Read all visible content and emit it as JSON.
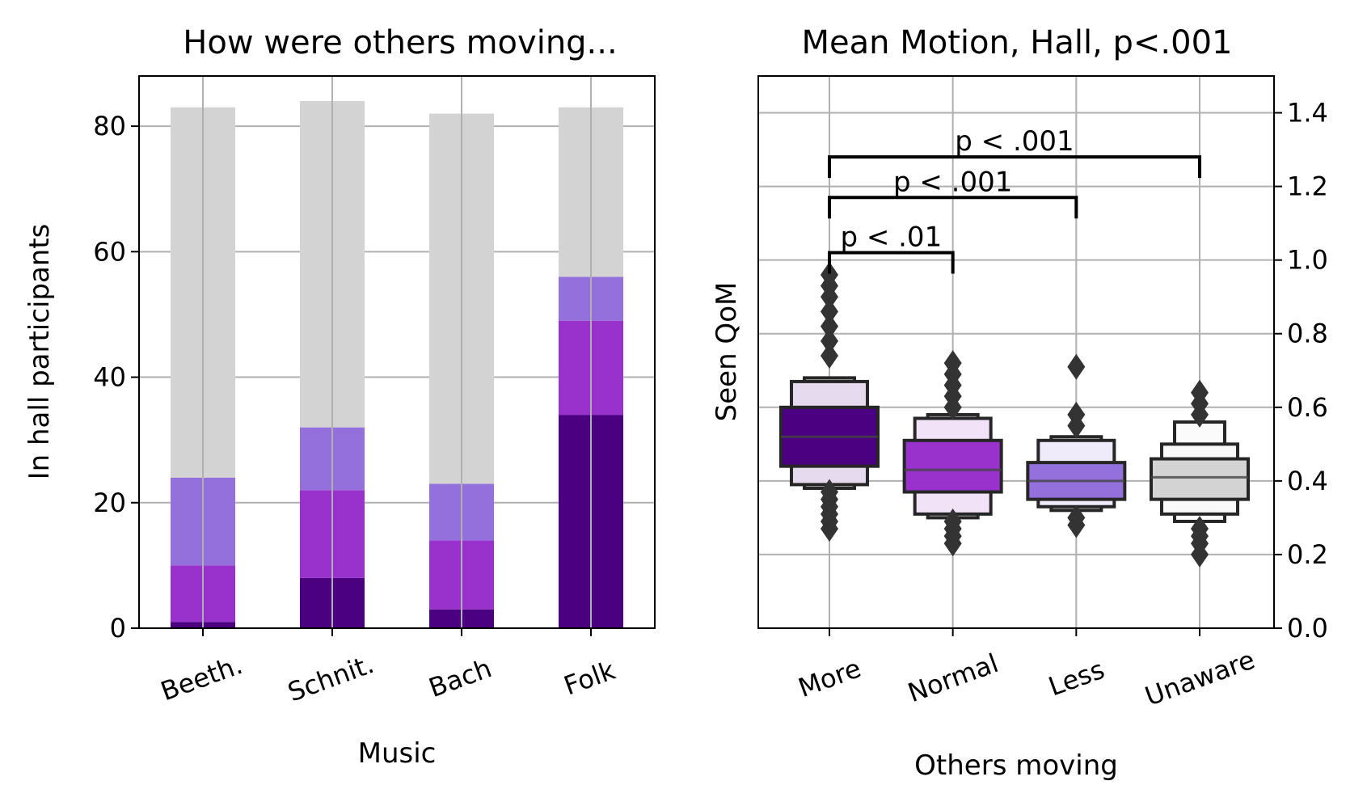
{
  "colors": {
    "more": "#4b0082",
    "normal": "#9932cc",
    "less": "#9370db",
    "unaware": "#d3d3d3",
    "grid": "#b0b0b0",
    "box_edge": "#262626"
  },
  "chart_data": [
    {
      "type": "bar",
      "stacked": true,
      "title": "How were others moving...",
      "xlabel": "Music",
      "ylabel": "In hall participants",
      "categories": [
        "Beeth.",
        "Schnit.",
        "Bach",
        "Folk"
      ],
      "series": [
        {
          "key": "more",
          "values": [
            1,
            8,
            3,
            34
          ]
        },
        {
          "key": "normal",
          "values": [
            9,
            14,
            11,
            15
          ]
        },
        {
          "key": "less",
          "values": [
            14,
            10,
            9,
            7
          ]
        },
        {
          "key": "unaware",
          "values": [
            59,
            52,
            59,
            27
          ]
        }
      ],
      "ylim": [
        0,
        88
      ],
      "yticks": [
        0,
        20,
        40,
        60,
        80
      ],
      "grid": true,
      "legend": "none"
    },
    {
      "type": "boxen",
      "title": "Mean Motion, Hall, p<.001",
      "xlabel": "Others moving",
      "ylabel": "Seen QoM",
      "y_axis_side": "right",
      "categories": [
        "More",
        "Normal",
        "Less",
        "Unaware"
      ],
      "ylim": [
        0,
        1.5
      ],
      "yticks": [
        "0.0",
        "0.2",
        "0.4",
        "0.6",
        "0.8",
        "1.0",
        "1.2",
        "1.4"
      ],
      "grid": true,
      "groups": [
        {
          "key": "more",
          "median": 0.52,
          "letter_values": [
            [
              0.44,
              0.6
            ],
            [
              0.39,
              0.67
            ],
            [
              0.38,
              0.68
            ]
          ],
          "outliers": [
            0.27,
            0.29,
            0.31,
            0.33,
            0.35,
            0.37,
            0.74,
            0.78,
            0.82,
            0.86,
            0.9,
            0.93,
            0.96
          ]
        },
        {
          "key": "normal",
          "median": 0.43,
          "letter_values": [
            [
              0.37,
              0.51
            ],
            [
              0.31,
              0.57
            ],
            [
              0.3,
              0.58
            ]
          ],
          "outliers": [
            0.23,
            0.25,
            0.27,
            0.29,
            0.6,
            0.63,
            0.66,
            0.69,
            0.72
          ]
        },
        {
          "key": "less",
          "median": 0.4,
          "letter_values": [
            [
              0.35,
              0.45
            ],
            [
              0.33,
              0.51
            ],
            [
              0.32,
              0.52
            ]
          ],
          "outliers": [
            0.28,
            0.3,
            0.55,
            0.58,
            0.71
          ]
        },
        {
          "key": "unaware",
          "median": 0.41,
          "letter_values": [
            [
              0.35,
              0.46
            ],
            [
              0.31,
              0.5
            ],
            [
              0.29,
              0.56
            ]
          ],
          "outliers": [
            0.2,
            0.23,
            0.25,
            0.27,
            0.58,
            0.61,
            0.64
          ]
        }
      ],
      "significance": [
        {
          "from": "More",
          "to": "Normal",
          "label": "p < .01",
          "y": 1.02
        },
        {
          "from": "More",
          "to": "Less",
          "label": "p < .001",
          "y": 1.17
        },
        {
          "from": "More",
          "to": "Unaware",
          "label": "p < .001",
          "y": 1.28
        }
      ]
    }
  ]
}
